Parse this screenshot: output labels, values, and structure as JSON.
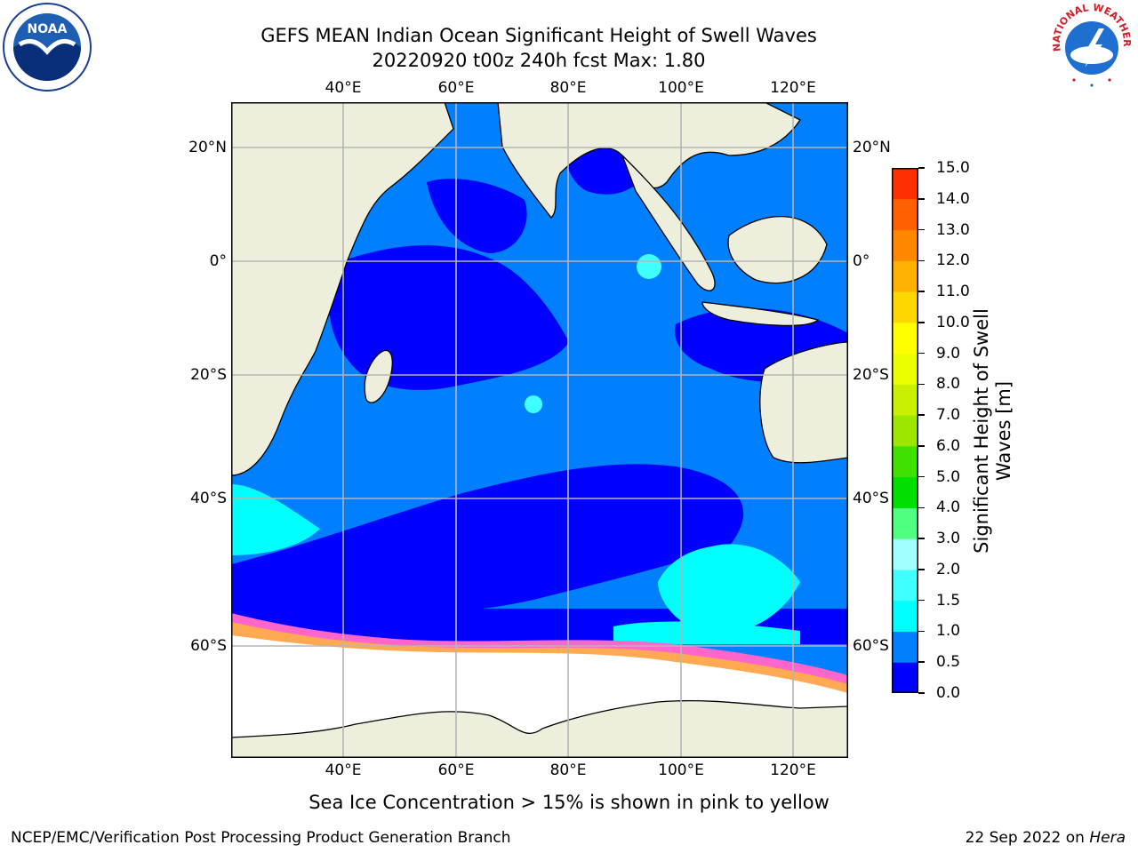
{
  "title": {
    "line1": "GEFS MEAN Indian Ocean Significant Height of Swell Waves",
    "line2": "20220920 t00z 240h fcst   Max: 1.80"
  },
  "map": {
    "lon_labels": [
      "40°E",
      "60°E",
      "80°E",
      "100°E",
      "120°E"
    ],
    "lat_labels": [
      "20°N",
      "0°",
      "20°S",
      "40°S",
      "60°S"
    ]
  },
  "colorbar": {
    "title_line1": "Significant Height of Swell",
    "title_line2": "Waves [m]",
    "levels": [
      "0.0",
      "0.5",
      "1.0",
      "1.5",
      "2.0",
      "3.0",
      "4.0",
      "5.0",
      "6.0",
      "7.0",
      "8.0",
      "9.0",
      "10.0",
      "11.0",
      "12.0",
      "13.0",
      "14.0",
      "15.0"
    ],
    "colors": [
      "#0000ff",
      "#0080ff",
      "#00ffff",
      "#40ffff",
      "#a0ffff",
      "#50ff80",
      "#00e000",
      "#40e000",
      "#9ce600",
      "#c8f000",
      "#ecff00",
      "#ffff00",
      "#ffd700",
      "#ffb000",
      "#ff8800",
      "#ff6000",
      "#ff3000",
      "#ff0000"
    ]
  },
  "note": "Sea Ice Concentration > 15% is shown in pink to yellow",
  "footer": {
    "left": "NCEP/EMC/Verification Post Processing Product Generation Branch",
    "right_prefix": "22 Sep 2022 on ",
    "right_host": "Hera"
  },
  "logos": {
    "noaa_text": "NOAA",
    "nws_text": "NATIONAL WEATHER SERVICE"
  }
}
